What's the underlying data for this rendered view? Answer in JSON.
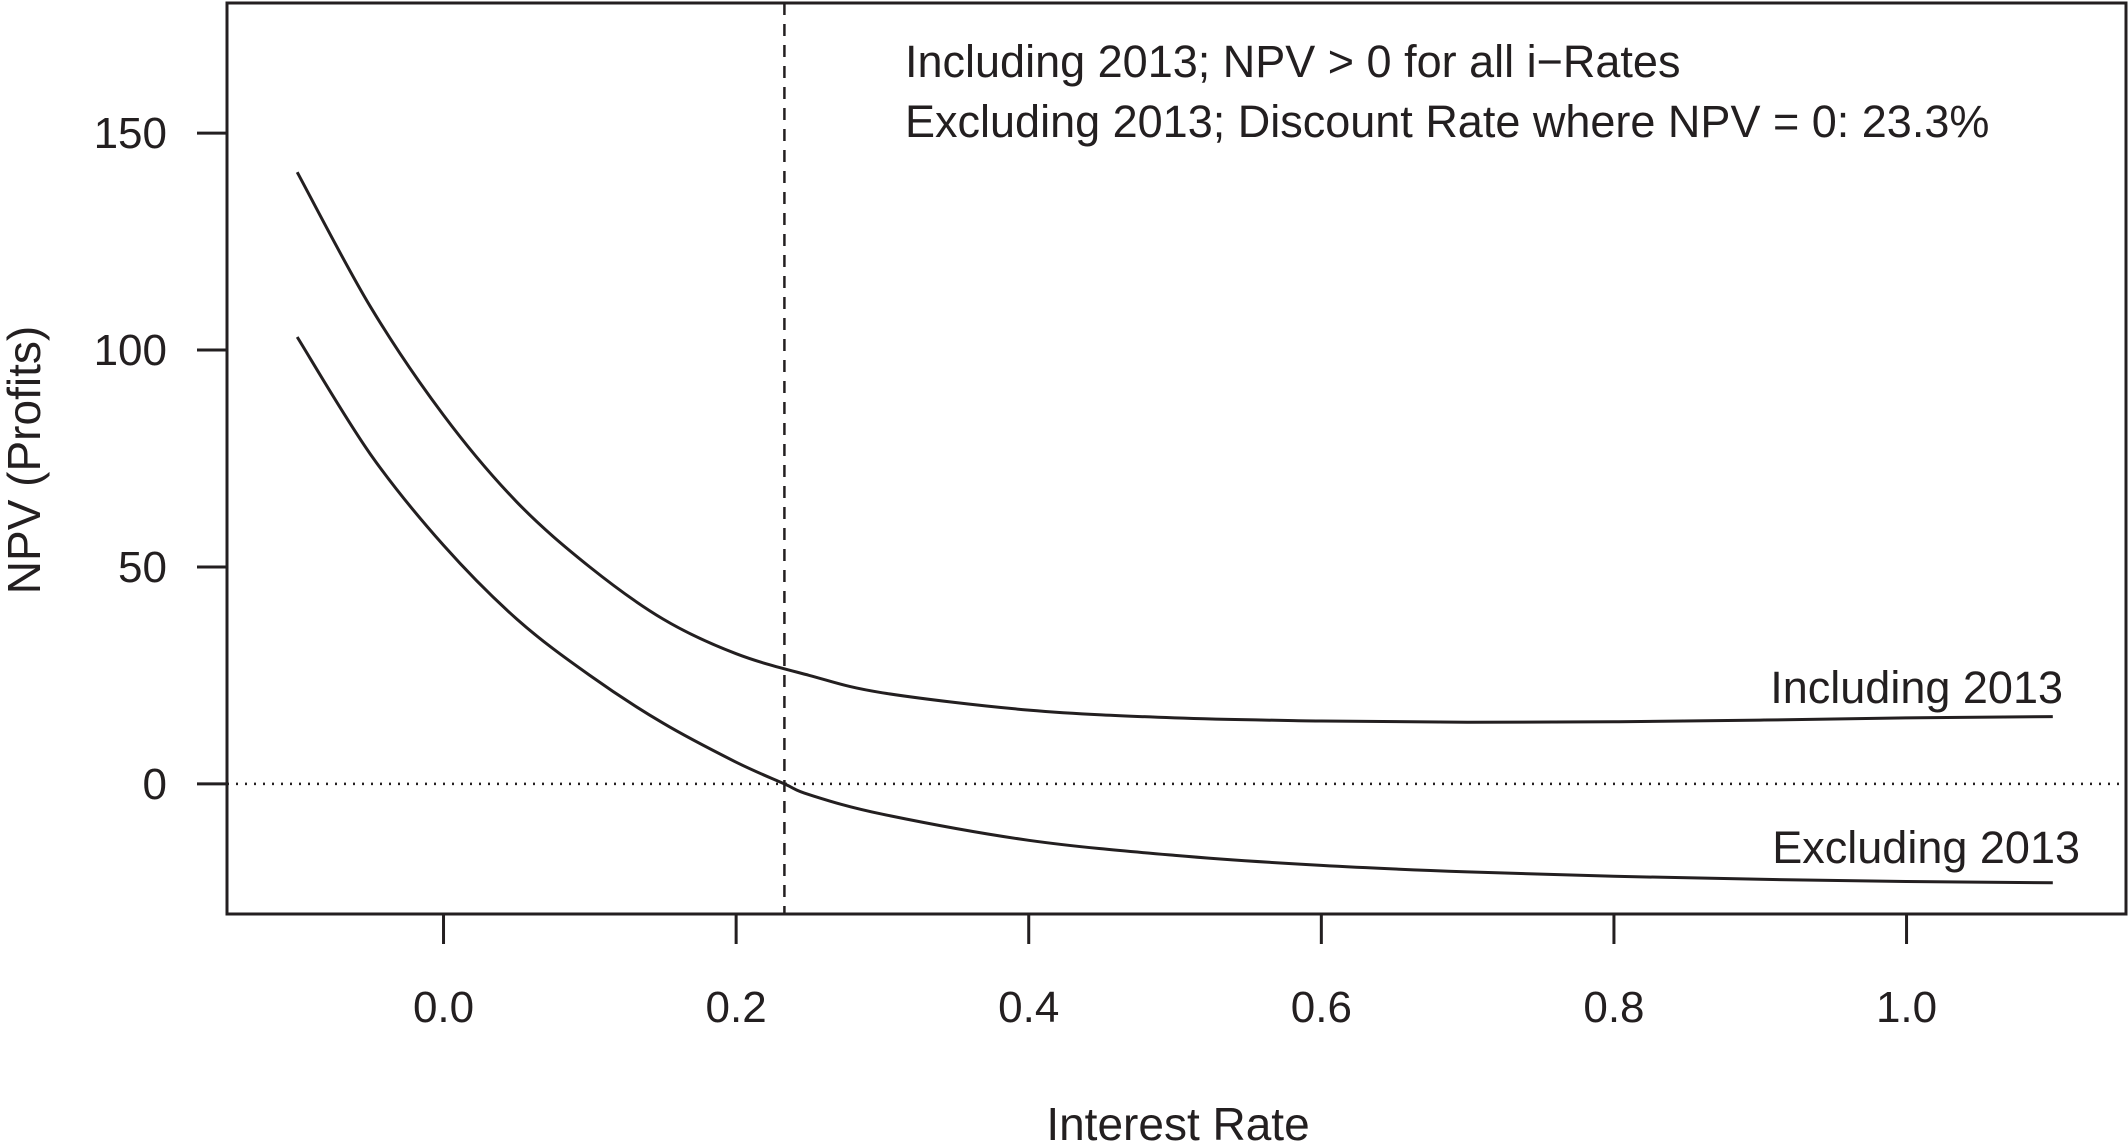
{
  "chart_data": {
    "type": "line",
    "title": "",
    "xlabel": "Interest Rate",
    "ylabel": "NPV (Profits)",
    "xlim": [
      -0.148,
      1.15
    ],
    "ylim": [
      -30,
      180
    ],
    "xticks": [
      0.0,
      0.2,
      0.4,
      0.6,
      0.8,
      1.0
    ],
    "xtick_labels": [
      "0.0",
      "0.2",
      "0.4",
      "0.6",
      "0.8",
      "1.0"
    ],
    "yticks": [
      0,
      50,
      100,
      150
    ],
    "ytick_labels": [
      "0",
      "50",
      "100",
      "150"
    ],
    "grid": false,
    "legend": "none",
    "annotations": [
      "Including 2013; NPV > 0 for all i−Rates",
      "Excluding 2013; Discount Rate where NPV = 0: 23.3%"
    ],
    "reference_lines": {
      "vertical_x": 0.233,
      "vertical_style": "dashed",
      "horizontal_y": 0,
      "horizontal_style": "dotted"
    },
    "series": [
      {
        "name": "Including 2013",
        "x": [
          -0.1,
          -0.05,
          0.0,
          0.05,
          0.1,
          0.15,
          0.2,
          0.25,
          0.3,
          0.4,
          0.5,
          0.6,
          0.7,
          0.8,
          0.9,
          1.0,
          1.1
        ],
        "values": [
          141,
          110,
          85,
          65,
          50,
          38,
          30,
          25,
          21,
          17,
          15.2,
          14.5,
          14.2,
          14.3,
          14.7,
          15.2,
          15.5
        ]
      },
      {
        "name": "Excluding 2013",
        "x": [
          -0.1,
          -0.05,
          0.0,
          0.05,
          0.1,
          0.15,
          0.2,
          0.233,
          0.25,
          0.3,
          0.4,
          0.5,
          0.6,
          0.7,
          0.8,
          0.9,
          1.0,
          1.1
        ],
        "values": [
          103,
          76,
          55,
          38,
          25,
          14,
          5,
          0,
          -2.5,
          -7,
          -13,
          -16.5,
          -18.8,
          -20.3,
          -21.3,
          -22,
          -22.5,
          -22.8
        ]
      }
    ],
    "colors": {
      "line": "#231f20",
      "background": "#ffffff"
    }
  }
}
